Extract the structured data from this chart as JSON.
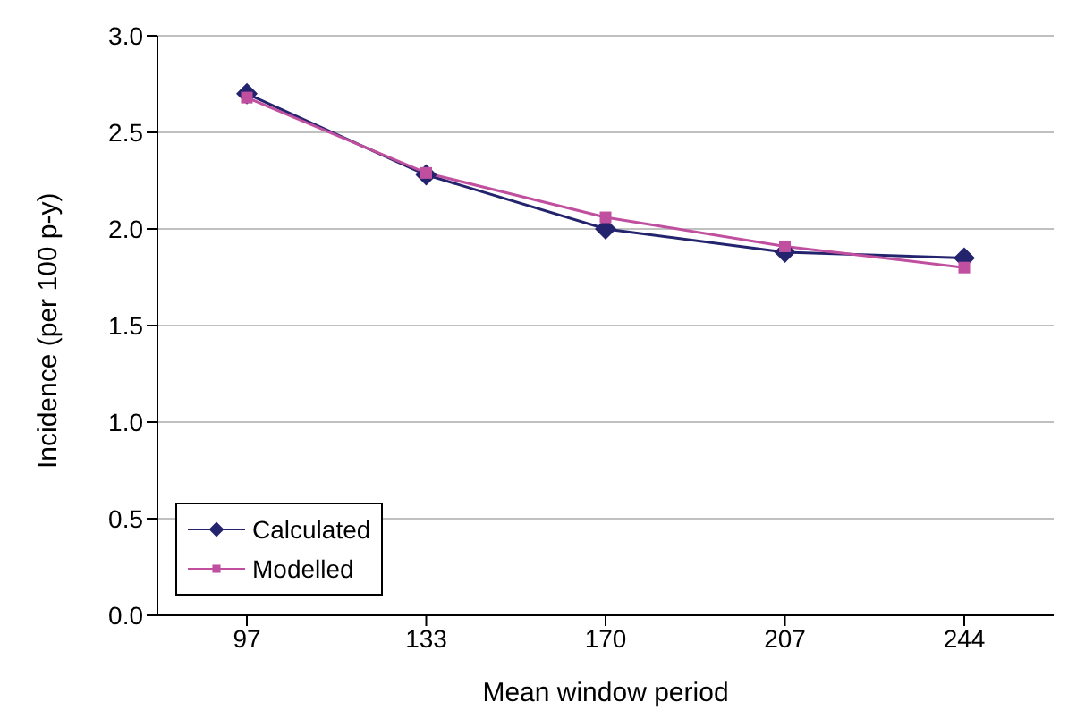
{
  "chart_data": {
    "type": "line",
    "xlabel": "Mean window period",
    "ylabel": "Incidence (per 100 p-y)",
    "categories": [
      "97",
      "133",
      "170",
      "207",
      "244"
    ],
    "series": [
      {
        "name": "Calculated",
        "color": "#24246e",
        "marker": "diamond",
        "values": [
          2.7,
          2.28,
          2.0,
          1.88,
          1.85
        ]
      },
      {
        "name": "Modelled",
        "color": "#c0509f",
        "marker": "square",
        "values": [
          2.68,
          2.29,
          2.06,
          1.91,
          1.8
        ]
      }
    ],
    "ylim": [
      0,
      3
    ],
    "yticks": [
      {
        "value": 0,
        "label": "0.0"
      },
      {
        "value": 0.5,
        "label": "0.5"
      },
      {
        "value": 1,
        "label": "1.0"
      },
      {
        "value": 1.5,
        "label": "1.5"
      },
      {
        "value": 2,
        "label": "2.0"
      },
      {
        "value": 2.5,
        "label": "2.5"
      },
      {
        "value": 3,
        "label": "3.0"
      }
    ],
    "grid": "y",
    "legend": "bottom left",
    "line_style": "solid"
  }
}
